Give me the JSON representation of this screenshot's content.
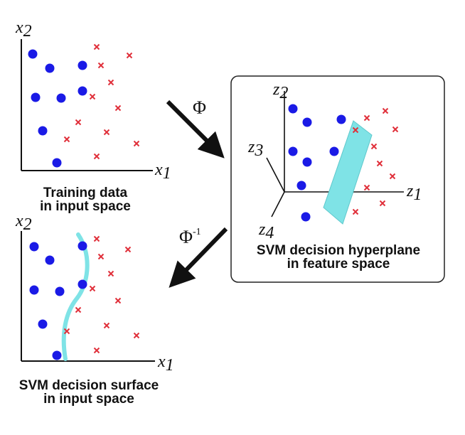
{
  "colors": {
    "circle": "#1a1ae6",
    "cross": "#e0303a",
    "surface": "#7fe3e6",
    "axis": "#111111",
    "arrow": "#111111"
  },
  "panel1": {
    "x_axis": "x",
    "x_sub": "1",
    "y_axis": "x",
    "y_sub": "2",
    "caption_line1": "Training data",
    "caption_line2": "in input space",
    "circle_icon": "filled-circle",
    "cross_icon": "x-cross"
  },
  "panel2": {
    "z1": "z",
    "z1_sub": "1",
    "z2": "z",
    "z2_sub": "2",
    "z3": "z",
    "z3_sub": "3",
    "z4": "z",
    "z4_sub": "4",
    "caption_line1": "SVM decision hyperplane",
    "caption_line2": "in feature space"
  },
  "panel3": {
    "x_axis": "x",
    "x_sub": "1",
    "y_axis": "x",
    "y_sub": "2",
    "caption_line1": "SVM decision surface",
    "caption_line2": "in input space"
  },
  "mapping": {
    "forward": "Φ",
    "inverse": "Φ",
    "inverse_sup": "-1"
  }
}
